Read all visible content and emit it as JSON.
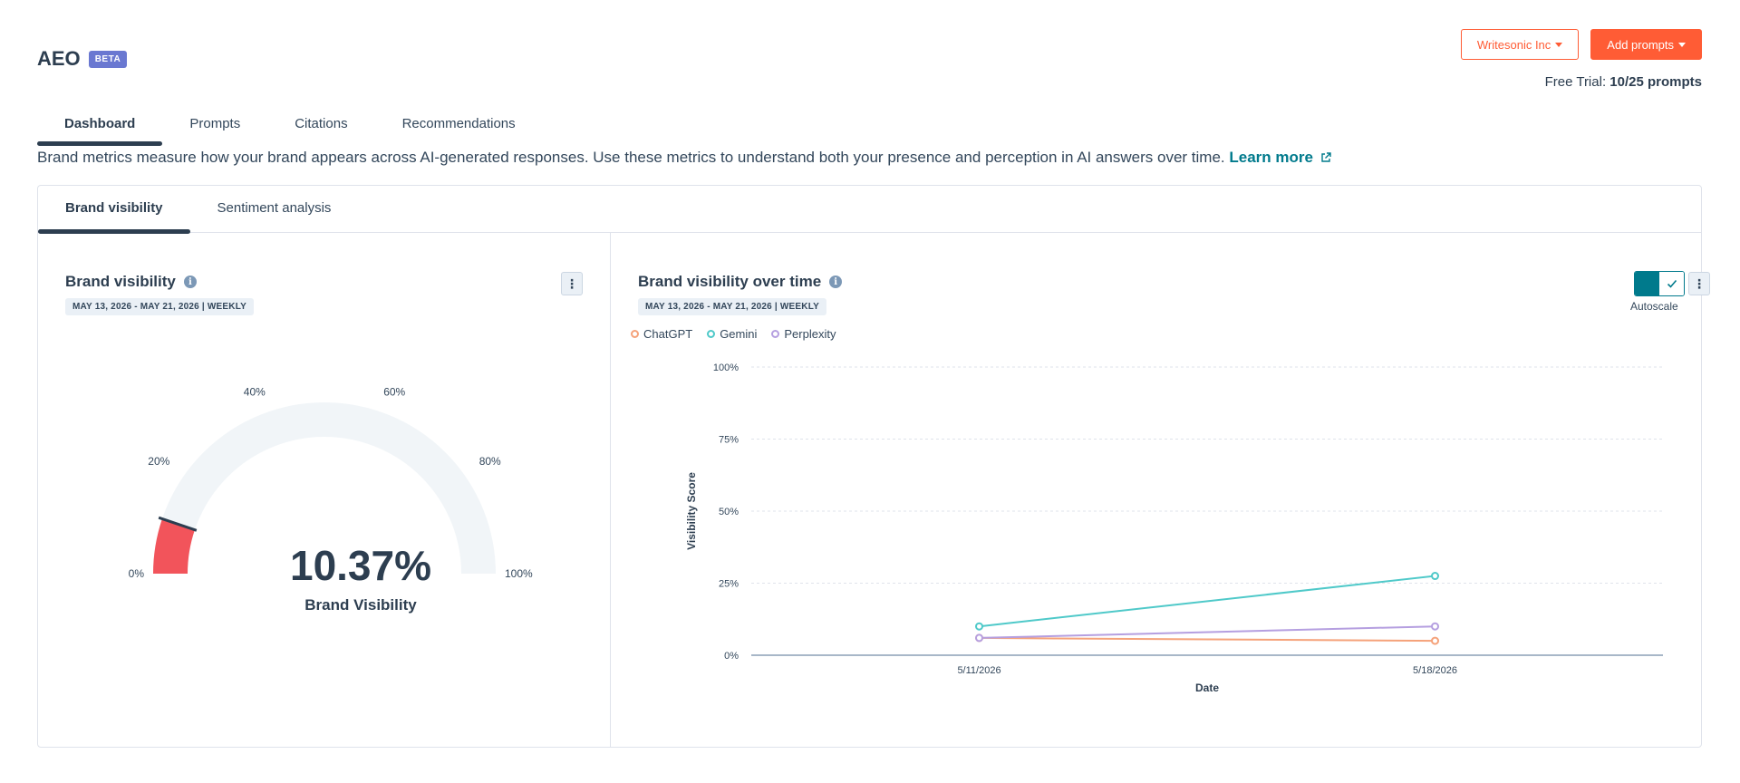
{
  "header": {
    "title": "AEO",
    "badge": "BETA"
  },
  "actions": {
    "org_label": "Writesonic Inc",
    "add_label": "Add prompts"
  },
  "trial": {
    "prefix": "Free Trial:",
    "value": "10/25 prompts"
  },
  "main_tabs": [
    {
      "label": "Dashboard",
      "active": true
    },
    {
      "label": "Prompts",
      "active": false
    },
    {
      "label": "Citations",
      "active": false
    },
    {
      "label": "Recommendations",
      "active": false
    }
  ],
  "description": {
    "text": "Brand metrics measure how your brand appears across AI-generated responses. Use these metrics to understand both your presence and perception in AI answers over time.",
    "link": "Learn more"
  },
  "sub_tabs": [
    {
      "label": "Brand visibility",
      "active": true
    },
    {
      "label": "Sentiment analysis",
      "active": false
    }
  ],
  "gauge_card": {
    "title": "Brand visibility",
    "date_range": "MAY 13, 2026 - MAY 21, 2026 | WEEKLY",
    "value": "10.37%",
    "value_percent": 10.37,
    "label": "Brand Visibility",
    "ticks": [
      "0%",
      "20%",
      "40%",
      "60%",
      "80%",
      "100%"
    ],
    "fill_color": "#f2545b",
    "track_color": "#f1f5f8"
  },
  "chart_card": {
    "title": "Brand visibility over time",
    "date_range": "MAY 13, 2026 - MAY 21, 2026 | WEEKLY",
    "autoscale_label": "Autoscale"
  },
  "chart_data": {
    "type": "line",
    "x": [
      "5/11/2026",
      "5/18/2026"
    ],
    "series": [
      {
        "name": "ChatGPT",
        "values": [
          6,
          5
        ],
        "color": "#f5a27a"
      },
      {
        "name": "Gemini",
        "values": [
          10,
          27.5
        ],
        "color": "#4fc9c9"
      },
      {
        "name": "Perplexity",
        "values": [
          6,
          10
        ],
        "color": "#b59fe0"
      }
    ],
    "yticks": [
      "100%",
      "75%",
      "50%",
      "25%",
      "0%"
    ],
    "ylim": [
      0,
      100
    ],
    "xlabel": "Date",
    "ylabel": "Visibility Score",
    "grid": true,
    "legend_position": "top-left"
  }
}
